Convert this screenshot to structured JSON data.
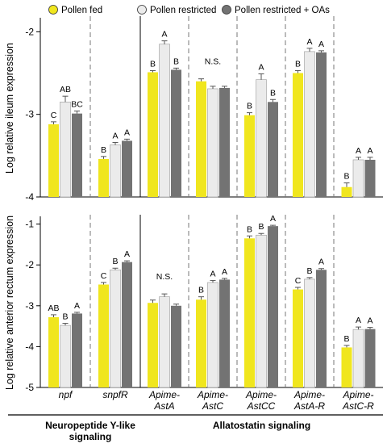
{
  "chart_data": {
    "type": "bar",
    "legend": {
      "placement": "top",
      "entries": [
        {
          "name": "Pollen fed",
          "color": "#f0e61e"
        },
        {
          "name": "Pollen restricted",
          "color": "#ebebeb"
        },
        {
          "name": "Pollen restricted + OAs",
          "color": "#737373"
        }
      ]
    },
    "categories": [
      {
        "label": "npf",
        "italic": true
      },
      {
        "label": "snpfR",
        "italic": true
      },
      {
        "label": "Apime-\nAstA",
        "italic": true
      },
      {
        "label": "Apime-\nAstC",
        "italic": true
      },
      {
        "label": "Apime-\nAstCC",
        "italic": true
      },
      {
        "label": "Apime-\nAstA-R",
        "italic": true
      },
      {
        "label": "Apime-\nAstC-R",
        "italic": true
      }
    ],
    "groups": [
      {
        "label": "Neuropeptide Y-like\nsignaling",
        "categories": [
          0,
          1
        ]
      },
      {
        "label": "Allatostatin signaling",
        "categories": [
          2,
          3,
          4,
          5,
          6
        ]
      }
    ],
    "panels": [
      {
        "ylabel": "Log relative ileum expression",
        "ylim": [
          -4,
          -1.85
        ],
        "yticks": [
          -4,
          -3,
          -2
        ],
        "ytick_labels": [
          "-4",
          "-3",
          "-2"
        ],
        "series": [
          {
            "name": "Pollen fed",
            "values": [
              -3.12,
              -3.54,
              -2.49,
              -2.6,
              -3.01,
              -2.5,
              -3.88
            ],
            "errors": [
              0.03,
              0.03,
              0.02,
              0.03,
              0.03,
              0.03,
              0.05
            ]
          },
          {
            "name": "Pollen restricted",
            "values": [
              -2.85,
              -3.37,
              -2.15,
              -2.69,
              -2.58,
              -2.24,
              -3.55
            ],
            "errors": [
              0.07,
              0.03,
              0.04,
              0.03,
              0.07,
              0.04,
              0.03
            ]
          },
          {
            "name": "Pollen restricted + OAs",
            "values": [
              -2.99,
              -3.32,
              -2.46,
              -2.68,
              -2.85,
              -2.25,
              -3.55
            ],
            "errors": [
              0.03,
              0.02,
              0.02,
              0.02,
              0.03,
              0.02,
              0.03
            ]
          }
        ],
        "letters": [
          [
            "C",
            "AB",
            "BC"
          ],
          [
            "B",
            "A",
            "A"
          ],
          [
            "B",
            "A",
            "B"
          ],
          null,
          [
            "B",
            "A",
            "B"
          ],
          [
            "B",
            "A",
            "A"
          ],
          [
            "B",
            "A",
            "A"
          ]
        ],
        "ns_label": "N.S.",
        "ns_category": 3
      },
      {
        "ylabel": "Log relative anterior rectum expression",
        "ylim": [
          -5,
          -0.85
        ],
        "yticks": [
          -5,
          -4,
          -3,
          -2,
          -1
        ],
        "ytick_labels": [
          "-5",
          "-4",
          "-3",
          "-2",
          "-1"
        ],
        "series": [
          {
            "name": "Pollen fed",
            "values": [
              -3.28,
              -2.48,
              -2.93,
              -2.85,
              -1.35,
              -2.6,
              -4.02
            ],
            "errors": [
              0.06,
              0.05,
              0.07,
              0.07,
              0.06,
              0.05,
              0.05
            ]
          },
          {
            "name": "Pollen restricted",
            "values": [
              -3.48,
              -2.12,
              -2.78,
              -2.43,
              -1.27,
              -2.35,
              -3.58
            ],
            "errors": [
              0.05,
              0.04,
              0.07,
              0.05,
              0.04,
              0.04,
              0.06
            ]
          },
          {
            "name": "Pollen restricted + OAs",
            "values": [
              -3.19,
              -1.93,
              -3.0,
              -2.36,
              -1.05,
              -2.12,
              -3.57
            ],
            "errors": [
              0.03,
              0.03,
              0.04,
              0.03,
              0.02,
              0.03,
              0.04
            ]
          }
        ],
        "letters": [
          [
            "AB",
            "B",
            "A"
          ],
          [
            "C",
            "B",
            "A"
          ],
          null,
          [
            "B",
            "A",
            "A"
          ],
          [
            "B",
            "B",
            "A"
          ],
          [
            "C",
            "B",
            "A"
          ],
          [
            "B",
            "A",
            "A"
          ]
        ],
        "ns_label": "N.S.",
        "ns_category": 2
      }
    ]
  }
}
